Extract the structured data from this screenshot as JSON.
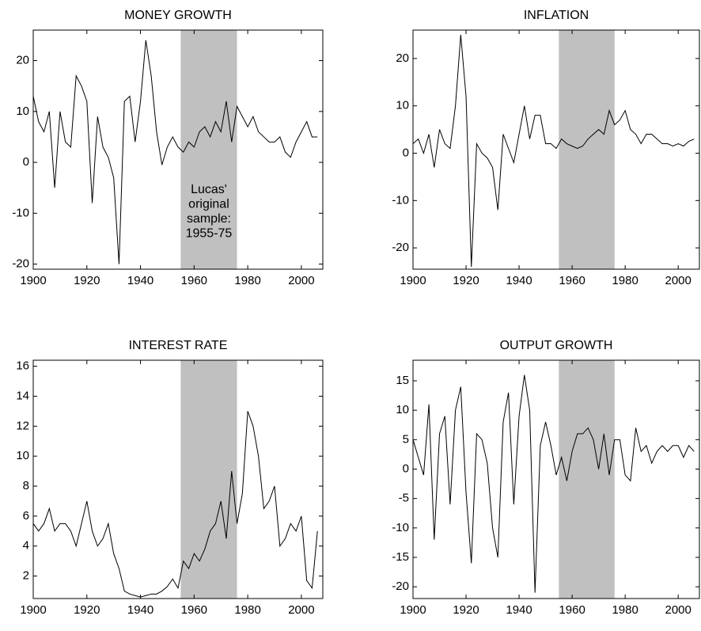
{
  "chart_data": [
    {
      "type": "line",
      "title": "MONEY GROWTH",
      "x": [
        1900,
        1902,
        1904,
        1906,
        1908,
        1910,
        1912,
        1914,
        1916,
        1918,
        1920,
        1922,
        1924,
        1926,
        1928,
        1930,
        1932,
        1934,
        1936,
        1938,
        1940,
        1942,
        1944,
        1946,
        1948,
        1950,
        1952,
        1954,
        1956,
        1958,
        1960,
        1962,
        1964,
        1966,
        1968,
        1970,
        1972,
        1974,
        1976,
        1978,
        1980,
        1982,
        1984,
        1986,
        1988,
        1990,
        1992,
        1994,
        1996,
        1998,
        2000,
        2002,
        2004,
        2006
      ],
      "series": [
        {
          "color": "#000000",
          "values": [
            13,
            8,
            6,
            10,
            -5,
            10,
            4,
            3,
            17,
            15,
            12,
            -8,
            9,
            3,
            1,
            -3,
            -20,
            12,
            13,
            4,
            12,
            24,
            17,
            6,
            -0.5,
            3,
            5,
            3,
            2,
            4,
            3,
            6,
            7,
            5,
            8,
            6,
            12,
            4,
            11,
            9,
            7,
            9,
            6,
            5,
            4,
            4,
            5,
            2,
            1,
            4,
            6,
            8,
            5,
            5
          ]
        }
      ],
      "xlim": [
        1900,
        2008
      ],
      "ylim": [
        -21,
        26
      ],
      "xticks": [
        1900,
        1920,
        1940,
        1960,
        1980,
        2000
      ],
      "yticks": [
        -20,
        -10,
        0,
        10,
        20
      ],
      "shaded_range": [
        1955,
        1976
      ],
      "annotation": [
        "Lucas'",
        "original",
        "sample:",
        "1955-75"
      ]
    },
    {
      "type": "line",
      "title": "INFLATION",
      "x": [
        1900,
        1902,
        1904,
        1906,
        1908,
        1910,
        1912,
        1914,
        1916,
        1918,
        1920,
        1922,
        1924,
        1926,
        1928,
        1930,
        1932,
        1934,
        1936,
        1938,
        1940,
        1942,
        1944,
        1946,
        1948,
        1950,
        1952,
        1954,
        1956,
        1958,
        1960,
        1962,
        1964,
        1966,
        1968,
        1970,
        1972,
        1974,
        1976,
        1978,
        1980,
        1982,
        1984,
        1986,
        1988,
        1990,
        1992,
        1994,
        1996,
        1998,
        2000,
        2002,
        2004,
        2006
      ],
      "series": [
        {
          "color": "#000000",
          "values": [
            2,
            3,
            0,
            4,
            -3,
            5,
            2,
            1,
            10,
            25,
            12,
            -24,
            2,
            0,
            -1,
            -3,
            -12,
            4,
            1,
            -2,
            4,
            10,
            3,
            8,
            8,
            2,
            2,
            1,
            3,
            2,
            1.5,
            1,
            1.5,
            3,
            4,
            5,
            4,
            9,
            6,
            7,
            9,
            5,
            4,
            2,
            4,
            4,
            3,
            2,
            2,
            1.5,
            2,
            1.5,
            2.5,
            3
          ]
        }
      ],
      "xlim": [
        1900,
        2008
      ],
      "ylim": [
        -24.5,
        26
      ],
      "xticks": [
        1900,
        1920,
        1940,
        1960,
        1980,
        2000
      ],
      "yticks": [
        -20,
        -10,
        0,
        10,
        20
      ],
      "shaded_range": [
        1955,
        1976
      ]
    },
    {
      "type": "line",
      "title": "INTEREST RATE",
      "x": [
        1900,
        1902,
        1904,
        1906,
        1908,
        1910,
        1912,
        1914,
        1916,
        1918,
        1920,
        1922,
        1924,
        1926,
        1928,
        1930,
        1932,
        1934,
        1936,
        1938,
        1940,
        1942,
        1944,
        1946,
        1948,
        1950,
        1952,
        1954,
        1956,
        1958,
        1960,
        1962,
        1964,
        1966,
        1968,
        1970,
        1972,
        1974,
        1976,
        1978,
        1980,
        1982,
        1984,
        1986,
        1988,
        1990,
        1992,
        1994,
        1996,
        1998,
        2000,
        2002,
        2004,
        2006
      ],
      "series": [
        {
          "color": "#000000",
          "values": [
            5.5,
            5,
            5.5,
            6.5,
            5,
            5.5,
            5.5,
            5,
            4,
            5.5,
            7,
            5,
            4,
            4.5,
            5.5,
            3.5,
            2.5,
            1,
            0.8,
            0.7,
            0.6,
            0.7,
            0.8,
            0.8,
            1,
            1.3,
            1.8,
            1.2,
            3,
            2.5,
            3.5,
            3,
            3.8,
            5,
            5.5,
            7,
            4.5,
            9,
            5.5,
            7.5,
            13,
            12,
            10,
            6.5,
            7,
            8,
            4,
            4.5,
            5.5,
            5,
            6,
            1.7,
            1.2,
            5
          ]
        }
      ],
      "xlim": [
        1900,
        2008
      ],
      "ylim": [
        0.5,
        16.4
      ],
      "xticks": [
        1900,
        1920,
        1940,
        1960,
        1980,
        2000
      ],
      "yticks": [
        2,
        4,
        6,
        8,
        10,
        12,
        14,
        16
      ],
      "shaded_range": [
        1955,
        1976
      ]
    },
    {
      "type": "line",
      "title": "OUTPUT GROWTH",
      "x": [
        1900,
        1902,
        1904,
        1906,
        1908,
        1910,
        1912,
        1914,
        1916,
        1918,
        1920,
        1922,
        1924,
        1926,
        1928,
        1930,
        1932,
        1934,
        1936,
        1938,
        1940,
        1942,
        1944,
        1946,
        1948,
        1950,
        1952,
        1954,
        1956,
        1958,
        1960,
        1962,
        1964,
        1966,
        1968,
        1970,
        1972,
        1974,
        1976,
        1978,
        1980,
        1982,
        1984,
        1986,
        1988,
        1990,
        1992,
        1994,
        1996,
        1998,
        2000,
        2002,
        2004,
        2006
      ],
      "series": [
        {
          "color": "#000000",
          "values": [
            5,
            2,
            -1,
            11,
            -12,
            6,
            9,
            -6,
            10,
            14,
            -4,
            -16,
            6,
            5,
            1,
            -10,
            -15,
            8,
            13,
            -6,
            9,
            16,
            10,
            -21,
            4,
            8,
            4,
            -1,
            2,
            -2,
            3,
            6,
            6,
            7,
            5,
            0,
            6,
            -1,
            5,
            5,
            -1,
            -2,
            7,
            3,
            4,
            1,
            3,
            4,
            3,
            4,
            4,
            2,
            4,
            3
          ]
        }
      ],
      "xlim": [
        1900,
        2008
      ],
      "ylim": [
        -22,
        18.5
      ],
      "xticks": [
        1900,
        1920,
        1940,
        1960,
        1980,
        2000
      ],
      "yticks": [
        -20,
        -15,
        -10,
        -5,
        0,
        5,
        10,
        15
      ],
      "shaded_range": [
        1955,
        1976
      ]
    }
  ]
}
